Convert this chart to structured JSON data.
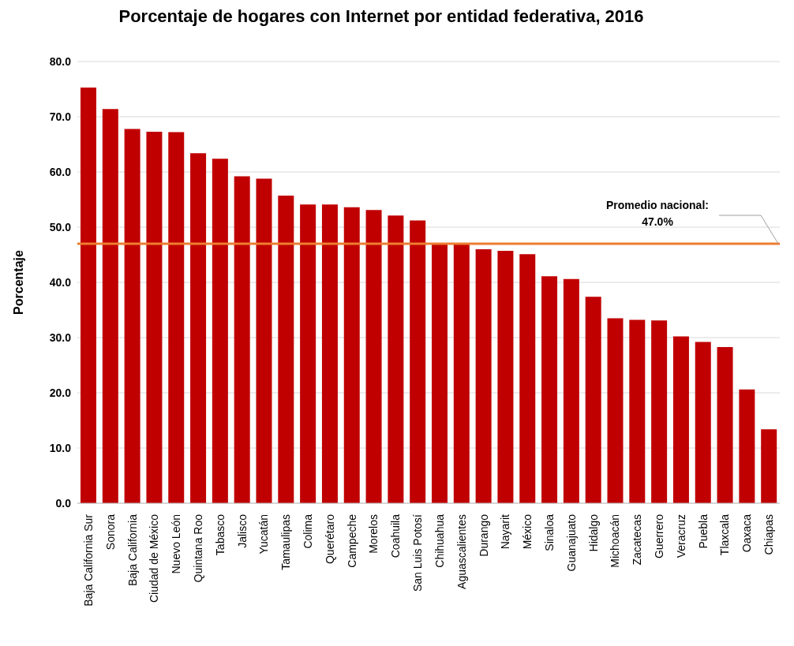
{
  "chart_data": {
    "type": "bar",
    "title": "Porcentaje de hogares con Internet por entidad federativa, 2016",
    "ylabel": "Porcentaje",
    "categories": [
      "Baja California Sur",
      "Sonora",
      "Baja California",
      "Ciudad de México",
      "Nuevo León",
      "Quintana Roo",
      "Tabasco",
      "Jalisco",
      "Yucatán",
      "Tamaulipas",
      "Colima",
      "Querétaro",
      "Campeche",
      "Morelos",
      "Coahuila",
      "San Luis Potosí",
      "Chihuahua",
      "Aguascalientes",
      "Durango",
      "Nayarit",
      "México",
      "Sinaloa",
      "Guanajuato",
      "Hidalgo",
      "Michoacán",
      "Zacatecas",
      "Guerrero",
      "Veracruz",
      "Puebla",
      "Tlaxcala",
      "Oaxaca",
      "Chiapas"
    ],
    "values": [
      75.3,
      71.4,
      67.8,
      67.3,
      67.2,
      63.4,
      62.4,
      59.2,
      58.8,
      55.7,
      54.1,
      54.1,
      53.6,
      53.1,
      52.1,
      51.2,
      46.9,
      46.9,
      46.0,
      45.7,
      45.1,
      41.1,
      40.6,
      37.4,
      33.5,
      33.2,
      33.1,
      30.2,
      29.2,
      28.3,
      20.6,
      13.4
    ],
    "color": "#c00000",
    "ylim": [
      0,
      80
    ],
    "yticks": [
      {
        "value": 0,
        "label": "0.0"
      },
      {
        "value": 10,
        "label": "10.0"
      },
      {
        "value": 20,
        "label": "20.0"
      },
      {
        "value": 30,
        "label": "30.0"
      },
      {
        "value": 40,
        "label": "40.0"
      },
      {
        "value": 50,
        "label": "50.0"
      },
      {
        "value": 60,
        "label": "60.0"
      },
      {
        "value": 70,
        "label": "70.0"
      },
      {
        "value": 80,
        "label": "80.0"
      }
    ],
    "grid": "y",
    "ref_lines": [
      {
        "axis": "y",
        "value": 47.0,
        "label": "Promedio nacional: 47.0%",
        "color": "#ed7d31"
      }
    ]
  }
}
